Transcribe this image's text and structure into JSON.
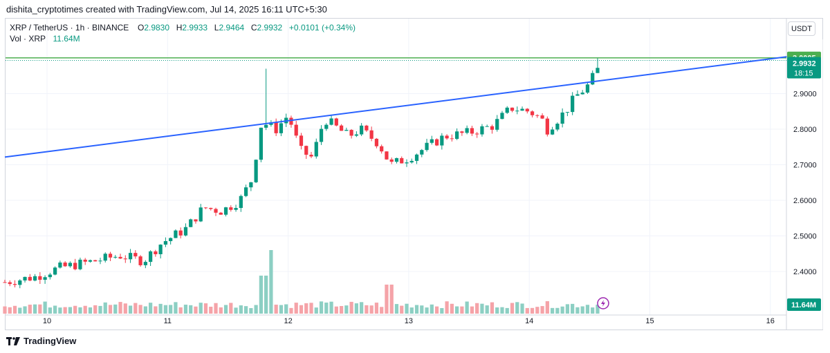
{
  "header": {
    "caption": "dishita_cryptotimes created with TradingView.com, Jul 14, 2025 16:11 UTC+5:30"
  },
  "legend": {
    "symbol": "XRP / TetherUS · 1h · BINANCE",
    "o_label": "O",
    "o_value": "2.9830",
    "h_label": "H",
    "h_value": "2.9933",
    "l_label": "L",
    "l_value": "2.9464",
    "c_label": "C",
    "c_value": "2.9932",
    "change": "+0.0101 (+0.34%)",
    "vol_label": "Vol · XRP",
    "vol_value": "11.64M"
  },
  "currency_button": "USDT",
  "brand": "TradingView",
  "colors": {
    "up": "#089981",
    "down": "#f23645",
    "up_volume": "#8ccfc3",
    "down_volume": "#f5a3a8",
    "trendline": "#2962ff",
    "level_line": "#4caf50",
    "grid": "#f0f3fa"
  },
  "chart_data": {
    "type": "candlestick",
    "symbol": "XRP / TetherUS",
    "interval": "1h",
    "exchange": "BINANCE",
    "y_range": [
      2.33,
      3.05
    ],
    "y_ticks": [
      "2.4000",
      "2.5000",
      "2.6000",
      "2.7000",
      "2.8000",
      "2.9000"
    ],
    "x_ticks": [
      "10",
      "11",
      "12",
      "13",
      "14",
      "15",
      "16"
    ],
    "level_line": {
      "value": 3.0005,
      "label": "3.0005"
    },
    "last_price": {
      "value": 2.9932,
      "label": "2.9932",
      "countdown": "18:15"
    },
    "volume_label": "11.64M",
    "trendline": {
      "start": {
        "day": 9.65,
        "price": 2.7216
      },
      "end": {
        "day": 16.16,
        "price": 3.0046
      }
    },
    "anchors": [
      [
        9.65,
        2.37
      ],
      [
        9.9,
        2.385
      ],
      [
        10.1,
        2.41
      ],
      [
        10.4,
        2.43
      ],
      [
        10.6,
        2.445
      ],
      [
        10.8,
        2.43
      ],
      [
        10.95,
        2.48
      ],
      [
        11.15,
        2.52
      ],
      [
        11.3,
        2.58
      ],
      [
        11.45,
        2.57
      ],
      [
        11.6,
        2.6
      ],
      [
        11.7,
        2.66
      ],
      [
        11.78,
        2.82
      ],
      [
        11.9,
        2.8
      ],
      [
        12.0,
        2.84
      ],
      [
        12.1,
        2.74
      ],
      [
        12.2,
        2.72
      ],
      [
        12.3,
        2.83
      ],
      [
        12.5,
        2.78
      ],
      [
        12.6,
        2.8
      ],
      [
        12.75,
        2.76
      ],
      [
        12.85,
        2.7
      ],
      [
        13.0,
        2.72
      ],
      [
        13.1,
        2.74
      ],
      [
        13.3,
        2.78
      ],
      [
        13.5,
        2.79
      ],
      [
        13.7,
        2.81
      ],
      [
        13.85,
        2.86
      ],
      [
        14.0,
        2.85
      ],
      [
        14.1,
        2.83
      ],
      [
        14.15,
        2.8
      ],
      [
        14.3,
        2.85
      ],
      [
        14.38,
        2.89
      ],
      [
        14.48,
        2.92
      ],
      [
        14.6,
        2.985
      ]
    ],
    "volume_base_m": 11.64
  }
}
